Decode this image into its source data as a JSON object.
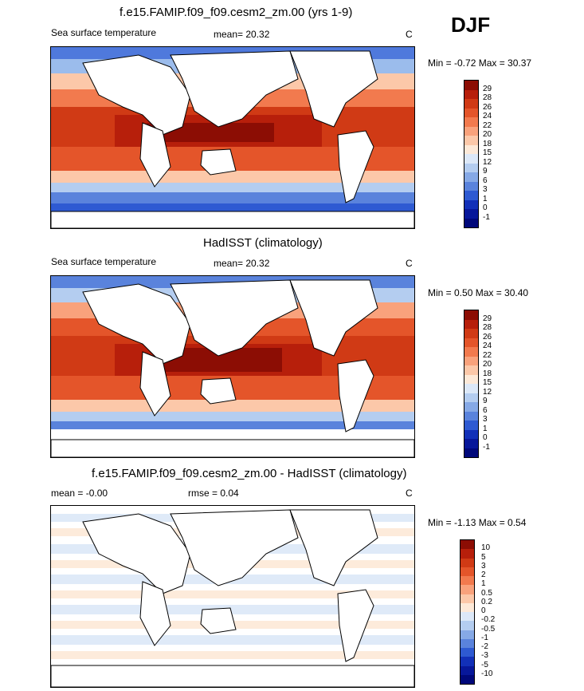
{
  "season": "DJF",
  "panels": [
    {
      "title": "f.e15.FAMIP.f09_f09.cesm2_zm.00 (yrs 1-9)",
      "left_label": "Sea surface temperature",
      "mean_label": "mean=  20.32",
      "unit": "C",
      "minmax": "Min =  -0.72 Max =  30.37",
      "levels": [
        "29",
        "28",
        "26",
        "24",
        "22",
        "20",
        "18",
        "15",
        "12",
        "9",
        "6",
        "3",
        "1",
        "0",
        "-1"
      ],
      "colors": [
        "#8c0d04",
        "#b71f0b",
        "#d03a15",
        "#e4552a",
        "#f27a4e",
        "#f9a27c",
        "#fcc8a9",
        "#fde9d8",
        "#dce8f8",
        "#b4cdf0",
        "#86a9e6",
        "#5a83dc",
        "#2e5ad2",
        "#1230b8",
        "#07179a",
        "#00087a"
      ]
    },
    {
      "title": "HadISST (climatology)",
      "left_label": "Sea surface temperature",
      "mean_label": "mean=  20.32",
      "unit": "C",
      "minmax": "Min =   0.50 Max =  30.40",
      "levels": [
        "29",
        "28",
        "26",
        "24",
        "22",
        "20",
        "18",
        "15",
        "12",
        "9",
        "6",
        "3",
        "1",
        "0",
        "-1"
      ],
      "colors": [
        "#8c0d04",
        "#b71f0b",
        "#d03a15",
        "#e4552a",
        "#f27a4e",
        "#f9a27c",
        "#fcc8a9",
        "#fde9d8",
        "#dce8f8",
        "#b4cdf0",
        "#86a9e6",
        "#5a83dc",
        "#2e5ad2",
        "#1230b8",
        "#07179a",
        "#00087a"
      ]
    },
    {
      "title": "f.e15.FAMIP.f09_f09.cesm2_zm.00 - HadISST (climatology)",
      "left_label": "mean =  -0.00",
      "mean_label": "rmse =   0.04",
      "unit": "C",
      "minmax": "Min =  -1.13 Max =   0.54",
      "levels": [
        "10",
        "5",
        "3",
        "2",
        "1",
        "0.5",
        "0.2",
        "0",
        "-0.2",
        "-0.5",
        "-1",
        "-2",
        "-3",
        "-5",
        "-10"
      ],
      "colors": [
        "#8c0d04",
        "#b71f0b",
        "#d03a15",
        "#e4552a",
        "#f27a4e",
        "#f9a27c",
        "#fcc8a9",
        "#fde9d8",
        "#dce8f8",
        "#b4cdf0",
        "#86a9e6",
        "#5a83dc",
        "#2e5ad2",
        "#1230b8",
        "#07179a",
        "#00087a"
      ]
    }
  ]
}
